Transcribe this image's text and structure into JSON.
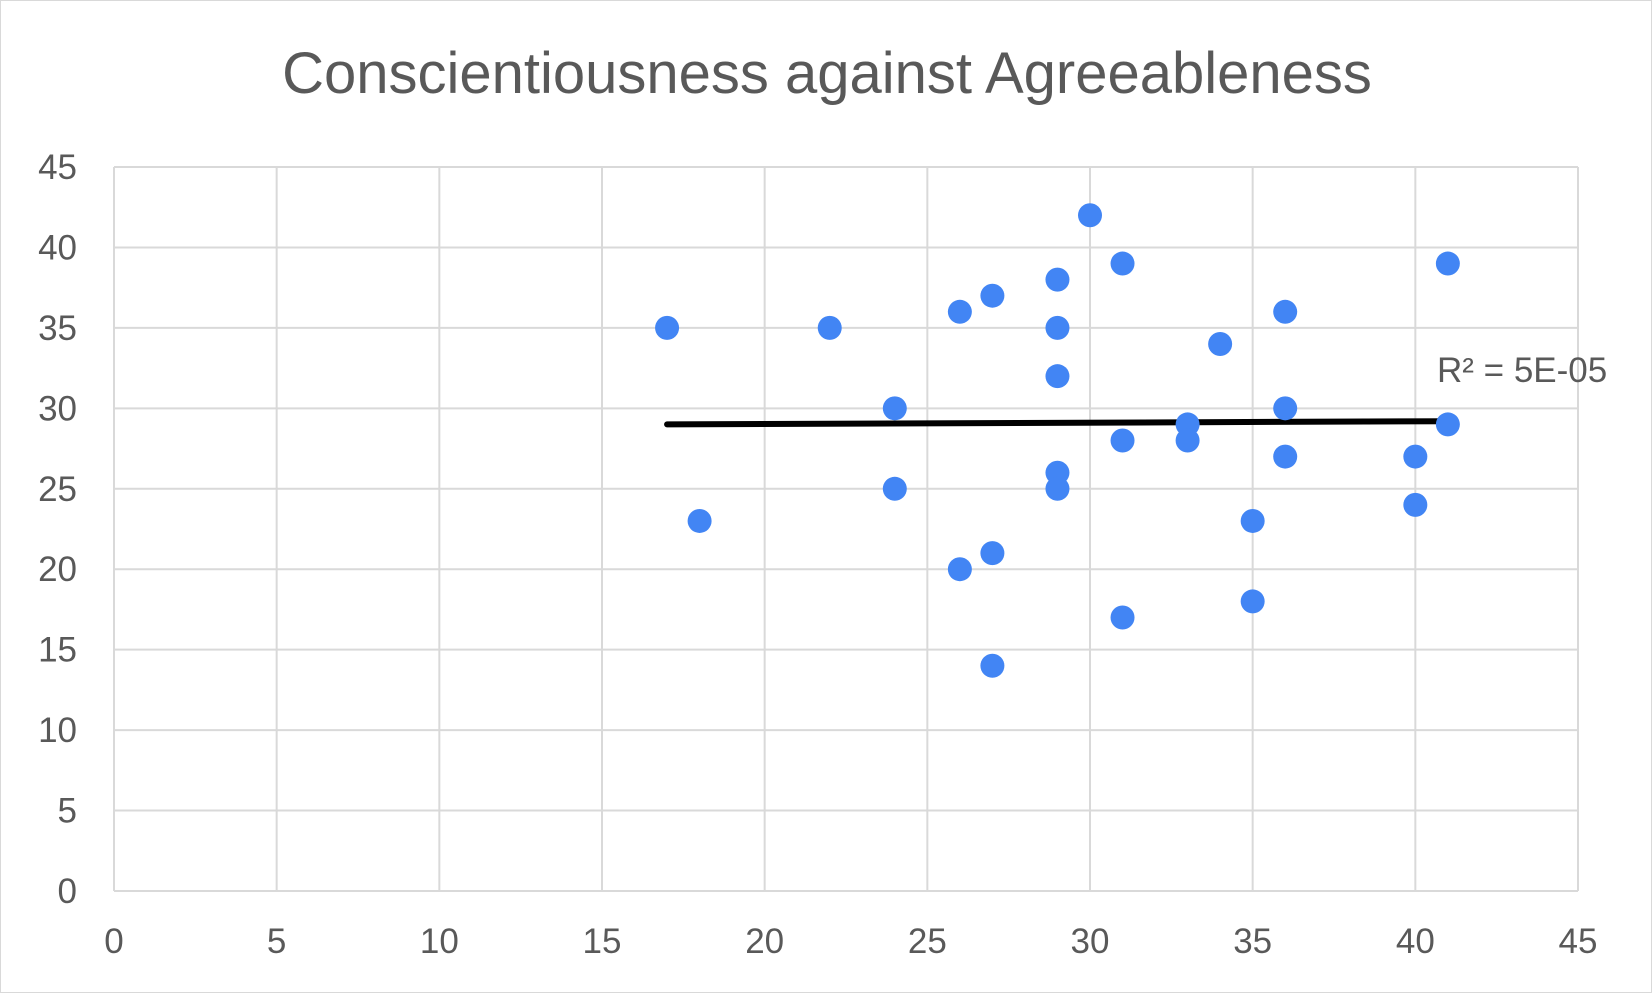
{
  "chart_data": {
    "type": "scatter",
    "title": "Conscientiousness against Agreeableness",
    "xlabel": "",
    "ylabel": "",
    "xlim": [
      0,
      45
    ],
    "ylim": [
      0,
      45
    ],
    "x_ticks": [
      0,
      5,
      10,
      15,
      20,
      25,
      30,
      35,
      40,
      45
    ],
    "y_ticks": [
      0,
      5,
      10,
      15,
      20,
      25,
      30,
      35,
      40,
      45
    ],
    "grid": true,
    "legend": "none",
    "marker_color": "#4285f4",
    "trendline_color": "#000000",
    "points": [
      {
        "x": 17,
        "y": 35
      },
      {
        "x": 18,
        "y": 23
      },
      {
        "x": 22,
        "y": 35
      },
      {
        "x": 24,
        "y": 30
      },
      {
        "x": 24,
        "y": 25
      },
      {
        "x": 26,
        "y": 36
      },
      {
        "x": 26,
        "y": 20
      },
      {
        "x": 27,
        "y": 37
      },
      {
        "x": 27,
        "y": 21
      },
      {
        "x": 27,
        "y": 14
      },
      {
        "x": 29,
        "y": 38
      },
      {
        "x": 29,
        "y": 35
      },
      {
        "x": 29,
        "y": 32
      },
      {
        "x": 29,
        "y": 26
      },
      {
        "x": 29,
        "y": 25
      },
      {
        "x": 30,
        "y": 42
      },
      {
        "x": 31,
        "y": 39
      },
      {
        "x": 31,
        "y": 28
      },
      {
        "x": 31,
        "y": 17
      },
      {
        "x": 33,
        "y": 29
      },
      {
        "x": 33,
        "y": 28
      },
      {
        "x": 34,
        "y": 34
      },
      {
        "x": 35,
        "y": 23
      },
      {
        "x": 35,
        "y": 18
      },
      {
        "x": 36,
        "y": 36
      },
      {
        "x": 36,
        "y": 30
      },
      {
        "x": 36,
        "y": 27
      },
      {
        "x": 40,
        "y": 27
      },
      {
        "x": 40,
        "y": 24
      },
      {
        "x": 41,
        "y": 39
      },
      {
        "x": 41,
        "y": 29
      }
    ],
    "trendline": {
      "x": [
        17,
        41
      ],
      "y": [
        29,
        29.2
      ]
    },
    "annotation": "R² = 5E-05"
  }
}
